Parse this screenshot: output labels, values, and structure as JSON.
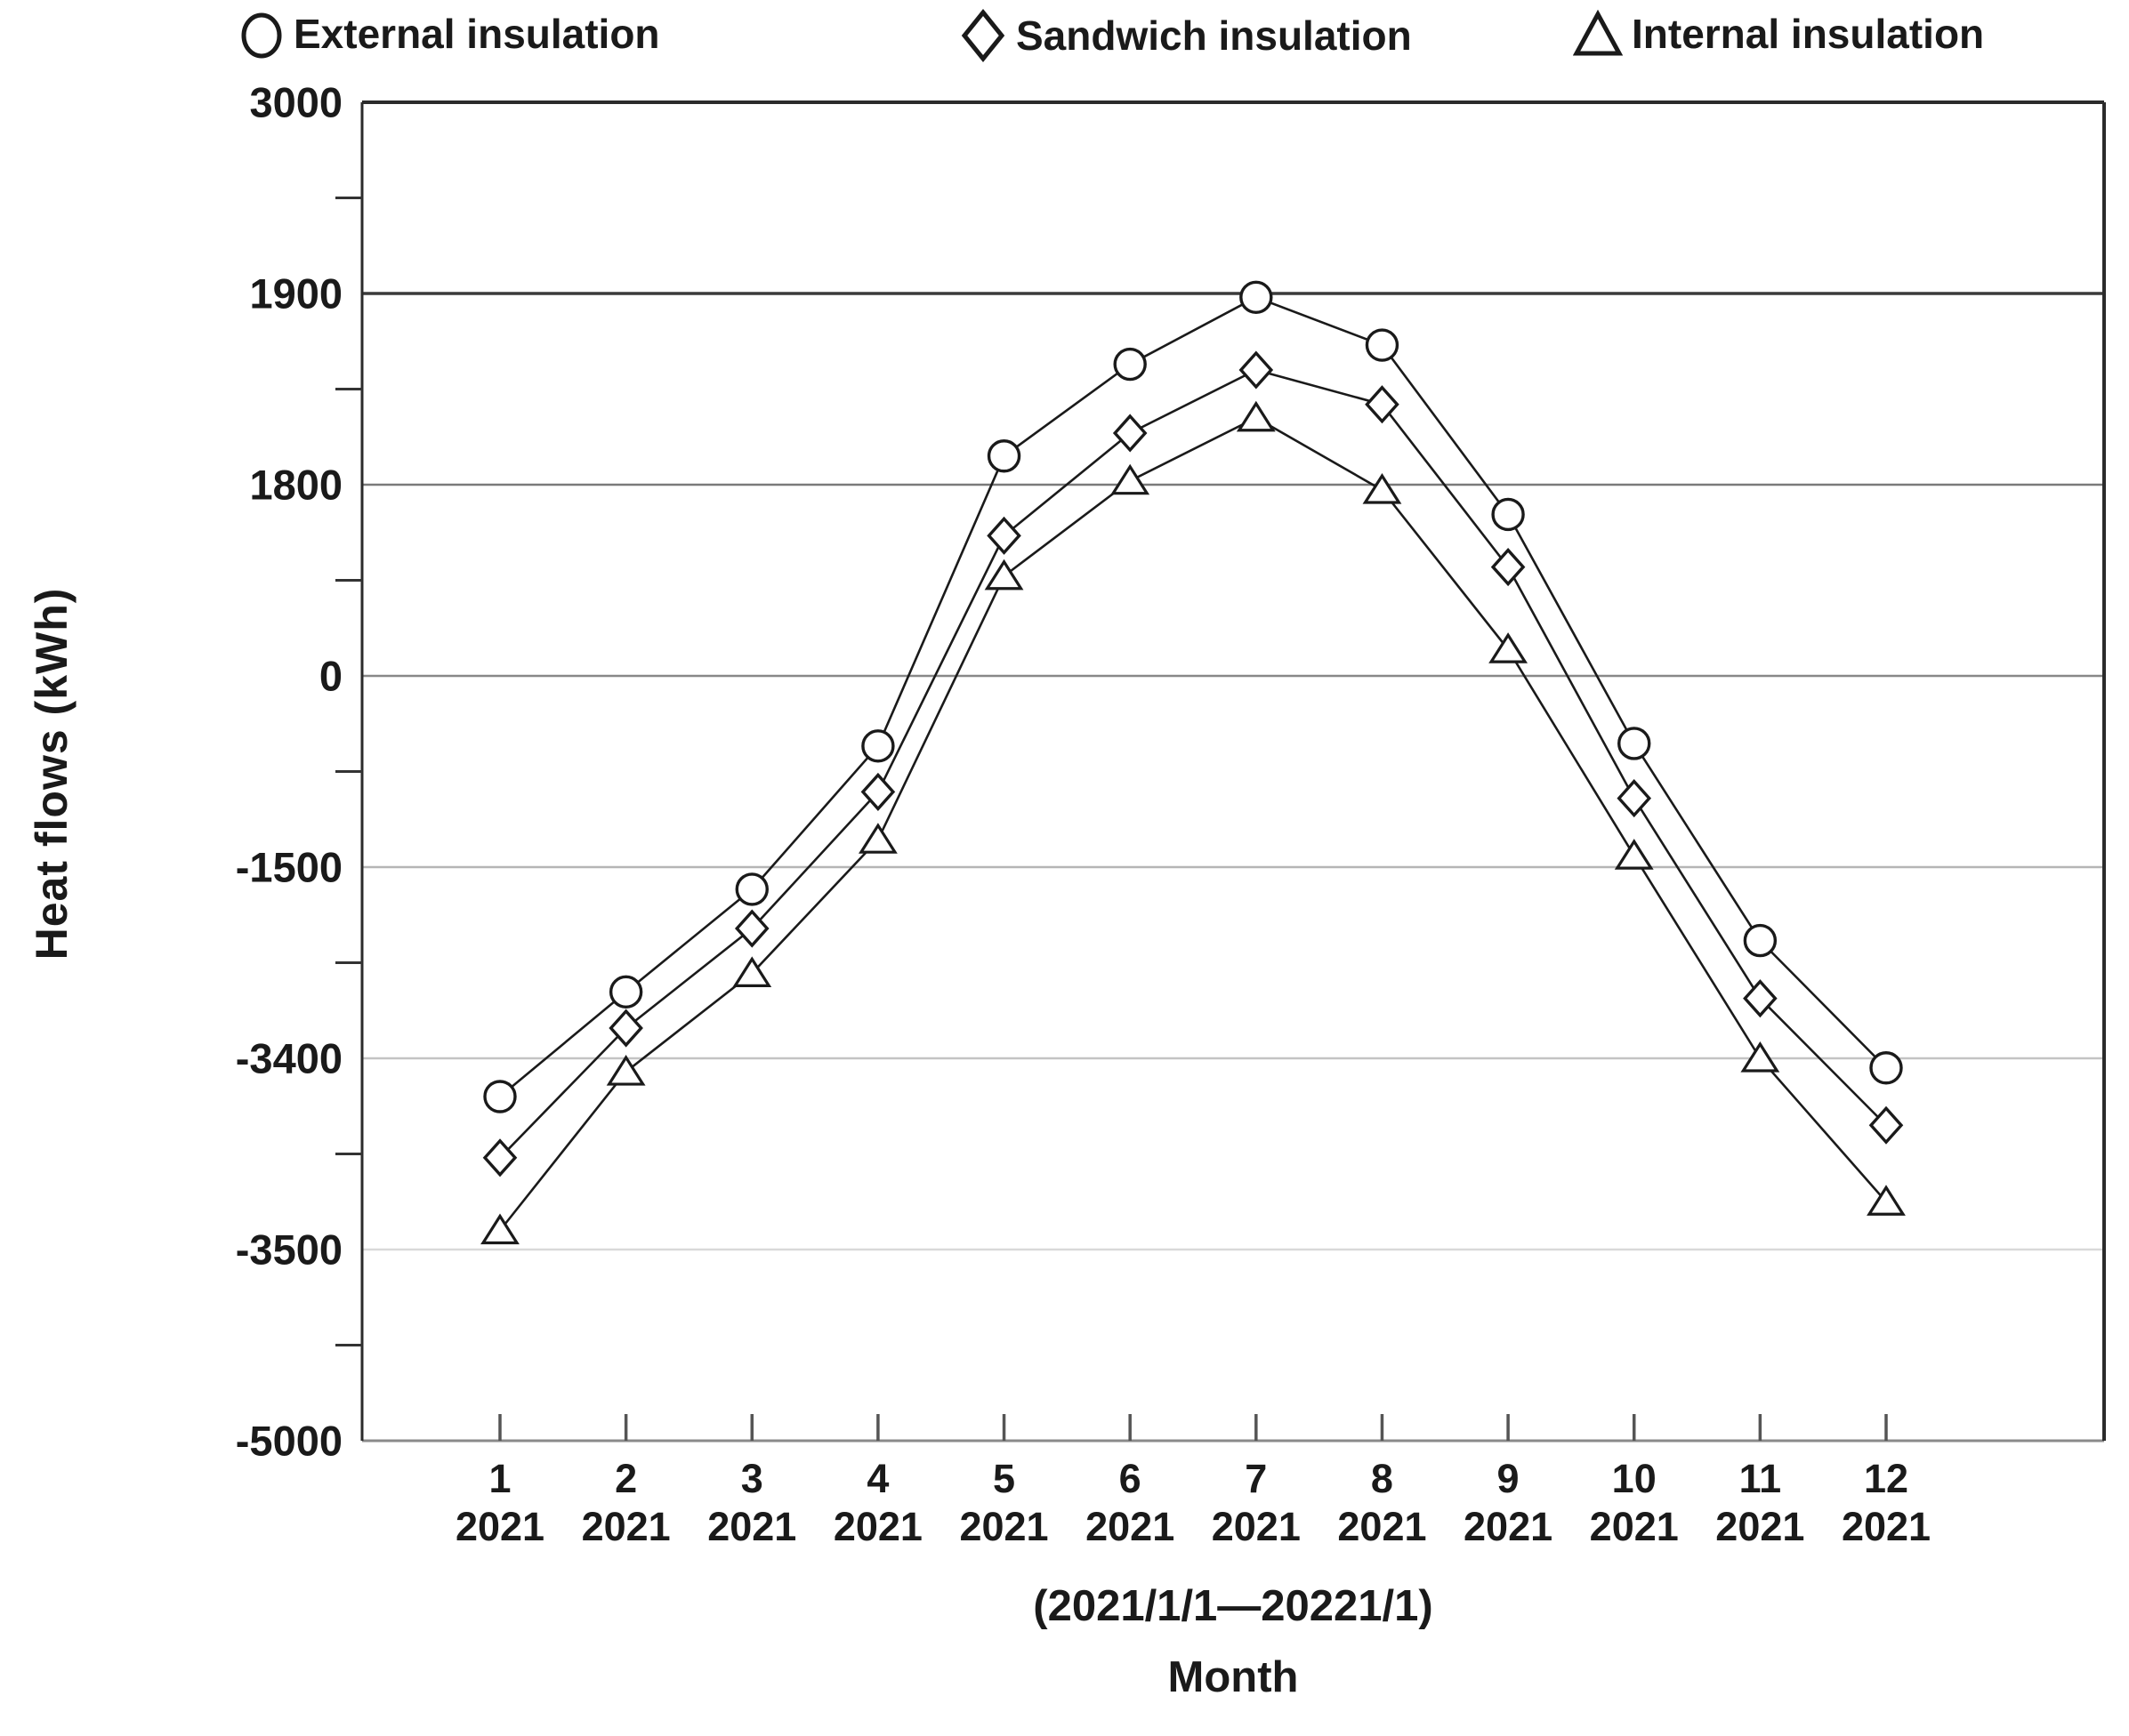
{
  "figure": {
    "y_axis_title": "Heat flows  (kWh)",
    "caption_range": "(2021/1/1—20221/1)",
    "caption_xlabel": "Month"
  },
  "legend": {
    "items": [
      {
        "label": "External insulation",
        "marker": "circle"
      },
      {
        "label": "Sandwich insulation",
        "marker": "diamond"
      },
      {
        "label": "Internal insulation",
        "marker": "triangle"
      }
    ]
  },
  "chart_data": {
    "type": "line",
    "title": "",
    "xlabel": "Month",
    "ylabel": "Heat flows (kWh)",
    "x_categories": [
      "1",
      "2",
      "3",
      "4",
      "5",
      "6",
      "7",
      "8",
      "9",
      "10",
      "11",
      "12"
    ],
    "x_year_label": "2021",
    "y_axis": {
      "tick_labels": [
        "3000",
        "1900",
        "1800",
        "0",
        "-1500",
        "-3400",
        "-3500",
        "-5000"
      ],
      "tick_values": [
        3000,
        1900,
        1800,
        0,
        -1500,
        -3400,
        -3500,
        -5000
      ],
      "note": "non-linear axis: ticks are equally spaced gridlines",
      "grid_colors": [
        "#2b2b2b",
        "#3a3a3a",
        "#7a7a7a",
        "#888888",
        "#b5b5b5",
        "#c4c4c4",
        "#d9d9d9",
        "#8a8a8a"
      ]
    },
    "series": [
      {
        "name": "External insulation",
        "marker": "circle",
        "values": [
          -3420,
          -2740,
          -1720,
          -550,
          1815,
          1863,
          1898,
          1873,
          1520,
          -530,
          -2230,
          -3405
        ]
      },
      {
        "name": "Sandwich insulation",
        "marker": "diamond",
        "values": [
          -3452,
          -3100,
          -2110,
          -910,
          1320,
          1827,
          1860,
          1842,
          1025,
          -960,
          -2805,
          -3435
        ]
      },
      {
        "name": "Internal insulation",
        "marker": "triangle",
        "values": [
          -3490,
          -3407,
          -2555,
          -1285,
          940,
          1802,
          1835,
          1750,
          250,
          -1410,
          -3400,
          -3475
        ]
      }
    ],
    "colors": {
      "line": "#1a1a1a",
      "marker_fill": "#ffffff",
      "background": "#ffffff"
    }
  }
}
